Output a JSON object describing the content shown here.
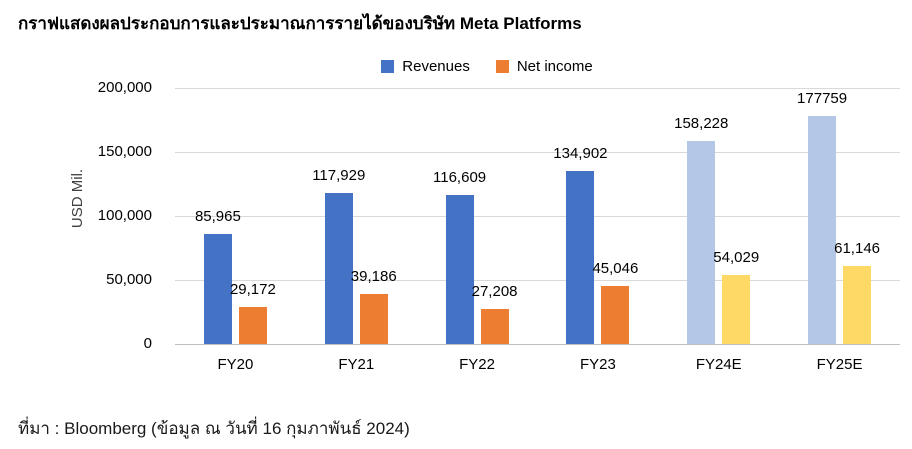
{
  "title": "กราฟแสดงผลประกอบการและประมาณการรายได้ของบริษัท Meta Platforms",
  "source_note": "ที่มา : Bloomberg (ข้อมูล ณ วันที่ 16 กุมภาพันธ์ 2024)",
  "colors": {
    "revenue_actual": "#4472C4",
    "revenue_estimate": "#B4C7E7",
    "net_income_actual": "#ED7D31",
    "net_income_estimate": "#FFD966",
    "gridline": "#D9D9D9",
    "axis_line": "#BFBFBF",
    "text": "#000000"
  },
  "chart_data": {
    "type": "bar",
    "title": "กราฟแสดงผลประกอบการและประมาณการรายได้ของบริษัท Meta Platforms",
    "xlabel": "",
    "ylabel": "USD Mil.",
    "ylim": [
      0,
      200000
    ],
    "yticks": [
      0,
      50000,
      100000,
      150000,
      200000
    ],
    "ytick_labels": [
      "0",
      "50,000",
      "100,000",
      "150,000",
      "200,000"
    ],
    "grid": true,
    "legend_position": "top-center",
    "categories": [
      "FY20",
      "FY21",
      "FY22",
      "FY23",
      "FY24E",
      "FY25E"
    ],
    "series": [
      {
        "name": "Revenues",
        "values": [
          85965,
          117929,
          116609,
          134902,
          158228,
          177759
        ],
        "labels": [
          "85,965",
          "117,929",
          "116,609",
          "134,902",
          "158,228",
          "177759"
        ],
        "colors": [
          "#4472C4",
          "#4472C4",
          "#4472C4",
          "#4472C4",
          "#B4C7E7",
          "#B4C7E7"
        ]
      },
      {
        "name": "Net income",
        "values": [
          29172,
          39186,
          27208,
          45046,
          54029,
          61146
        ],
        "labels": [
          "29,172",
          "39,186",
          "27,208",
          "45,046",
          "54,029",
          "61,146"
        ],
        "colors": [
          "#ED7D31",
          "#ED7D31",
          "#ED7D31",
          "#ED7D31",
          "#FFD966",
          "#FFD966"
        ]
      }
    ],
    "legend": [
      {
        "label": "Revenues",
        "color": "#4472C4"
      },
      {
        "label": "Net income",
        "color": "#ED7D31"
      }
    ]
  }
}
